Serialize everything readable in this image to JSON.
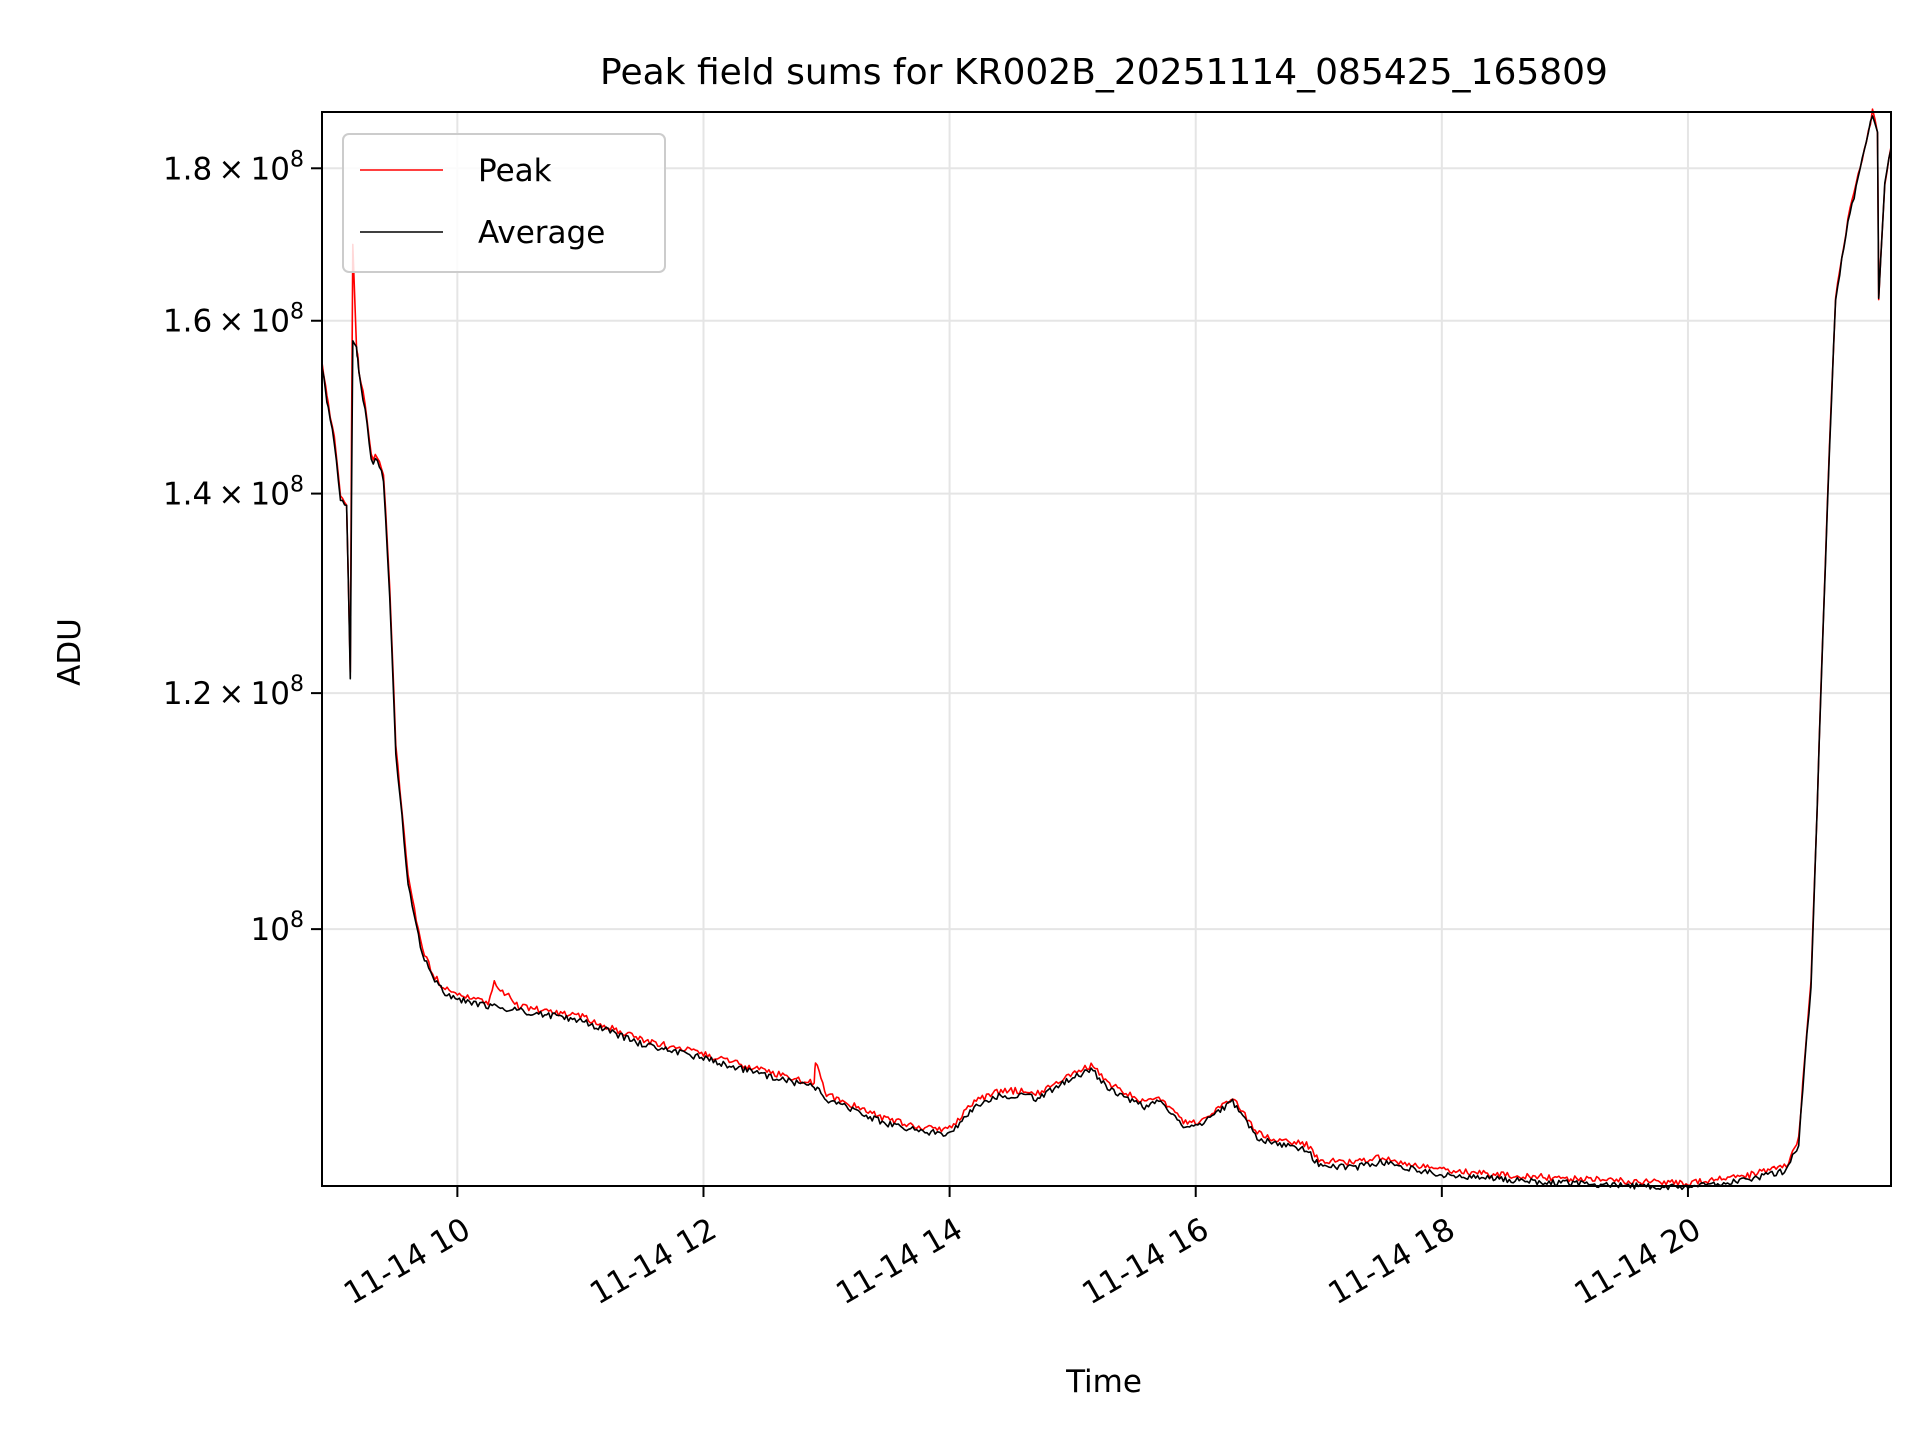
{
  "chart_data": {
    "type": "line",
    "title": "Peak field sums for KR002B_20251114_085425_165809",
    "xlabel": "Time",
    "ylabel": "ADU",
    "x_unit": "hours since 11-14 00:00",
    "xlim": [
      8.9,
      21.65
    ],
    "ylim": [
      82000000,
      188000000
    ],
    "yscale": "log",
    "grid": true,
    "legend_position": "top-left",
    "x_ticks": [
      {
        "value": 10,
        "label": "11-14 10"
      },
      {
        "value": 12,
        "label": "11-14 12"
      },
      {
        "value": 14,
        "label": "11-14 14"
      },
      {
        "value": 16,
        "label": "11-14 16"
      },
      {
        "value": 18,
        "label": "11-14 18"
      },
      {
        "value": 20,
        "label": "11-14 20"
      }
    ],
    "y_ticks": [
      {
        "value": 100000000,
        "mantissa": "",
        "exponent": "8"
      },
      {
        "value": 120000000,
        "mantissa": "1.2",
        "exponent": "8"
      },
      {
        "value": 140000000,
        "mantissa": "1.4",
        "exponent": "8"
      },
      {
        "value": 160000000,
        "mantissa": "1.6",
        "exponent": "8"
      },
      {
        "value": 180000000,
        "mantissa": "1.8",
        "exponent": "8"
      }
    ],
    "series": [
      {
        "name": "Peak",
        "color": "#ff0000",
        "x": [
          8.9,
          8.93,
          8.95,
          9.0,
          9.05,
          9.1,
          9.13,
          9.15,
          9.18,
          9.19,
          9.2,
          9.25,
          9.3,
          9.35,
          9.4,
          9.45,
          9.5,
          9.6,
          9.7,
          9.8,
          9.9,
          10.0,
          10.25,
          10.3,
          10.5,
          11.0,
          11.5,
          12.0,
          12.5,
          12.9,
          12.91,
          13.0,
          13.5,
          13.8,
          14.0,
          14.2,
          14.4,
          14.6,
          14.7,
          15.0,
          15.15,
          15.3,
          15.6,
          15.7,
          15.9,
          16.0,
          16.3,
          16.5,
          16.7,
          16.9,
          17.0,
          17.3,
          17.5,
          17.7,
          18.0,
          18.5,
          19.0,
          19.5,
          20.0,
          20.5,
          20.8,
          20.9,
          21.0,
          21.05,
          21.1,
          21.15,
          21.2,
          21.3,
          21.4,
          21.45,
          21.5,
          21.54,
          21.55,
          21.6,
          21.65
        ],
        "values": [
          155000000,
          152000000,
          150000000,
          146000000,
          140000000,
          139000000,
          122000000,
          170000000,
          157000000,
          156000000,
          154000000,
          150000000,
          144000000,
          144000000,
          142000000,
          130000000,
          115000000,
          104000000,
          99000000,
          96500000,
          95500000,
          95000000,
          94500000,
          96000000,
          94200000,
          93500000,
          91800000,
          90800000,
          89600000,
          88800000,
          90300000,
          88000000,
          86300000,
          85800000,
          85700000,
          87500000,
          88200000,
          88300000,
          88000000,
          89500000,
          90000000,
          88700000,
          87400000,
          87900000,
          86200000,
          86100000,
          87800000,
          85400000,
          84900000,
          84700000,
          83600000,
          83500000,
          83800000,
          83500000,
          83000000,
          82700000,
          82500000,
          82300000,
          82200000,
          82700000,
          83300000,
          85000000,
          96000000,
          110000000,
          127000000,
          145000000,
          163000000,
          173000000,
          180000000,
          184000000,
          188000000,
          185000000,
          163000000,
          178000000,
          183000000
        ]
      },
      {
        "name": "Average",
        "color": "#000000",
        "x": [
          8.9,
          8.93,
          8.95,
          9.0,
          9.05,
          9.1,
          9.13,
          9.15,
          9.18,
          9.19,
          9.2,
          9.25,
          9.3,
          9.35,
          9.4,
          9.45,
          9.5,
          9.6,
          9.7,
          9.8,
          9.9,
          10.0,
          10.25,
          10.3,
          10.5,
          11.0,
          11.5,
          12.0,
          12.5,
          12.9,
          12.91,
          13.0,
          13.5,
          13.8,
          14.0,
          14.2,
          14.4,
          14.6,
          14.7,
          15.0,
          15.15,
          15.3,
          15.6,
          15.7,
          15.9,
          16.0,
          16.3,
          16.5,
          16.7,
          16.9,
          17.0,
          17.3,
          17.5,
          17.7,
          18.0,
          18.5,
          19.0,
          19.5,
          20.0,
          20.5,
          20.8,
          20.9,
          21.0,
          21.05,
          21.1,
          21.15,
          21.2,
          21.3,
          21.4,
          21.45,
          21.5,
          21.54,
          21.55,
          21.6,
          21.65
        ],
        "values": [
          154500000,
          151500000,
          149500000,
          145500000,
          139500000,
          138500000,
          121500000,
          157500000,
          156500000,
          155500000,
          153500000,
          149500000,
          143500000,
          143500000,
          141500000,
          129500000,
          114500000,
          103500000,
          98600000,
          96200000,
          95200000,
          94700000,
          94200000,
          94200000,
          93900000,
          93200000,
          91500000,
          90500000,
          89300000,
          88500000,
          88500000,
          87700000,
          86000000,
          85500000,
          85400000,
          87200000,
          87900000,
          88000000,
          87700000,
          89200000,
          89700000,
          88400000,
          87100000,
          87600000,
          85900000,
          85800000,
          87500000,
          85100000,
          84600000,
          84400000,
          83300000,
          83200000,
          83500000,
          83200000,
          82700000,
          82400000,
          82200000,
          82000000,
          81900000,
          82400000,
          83000000,
          84700000,
          95700000,
          109700000,
          126700000,
          144700000,
          162700000,
          172700000,
          179700000,
          183700000,
          187700000,
          184700000,
          162700000,
          177700000,
          182700000
        ]
      }
    ]
  }
}
